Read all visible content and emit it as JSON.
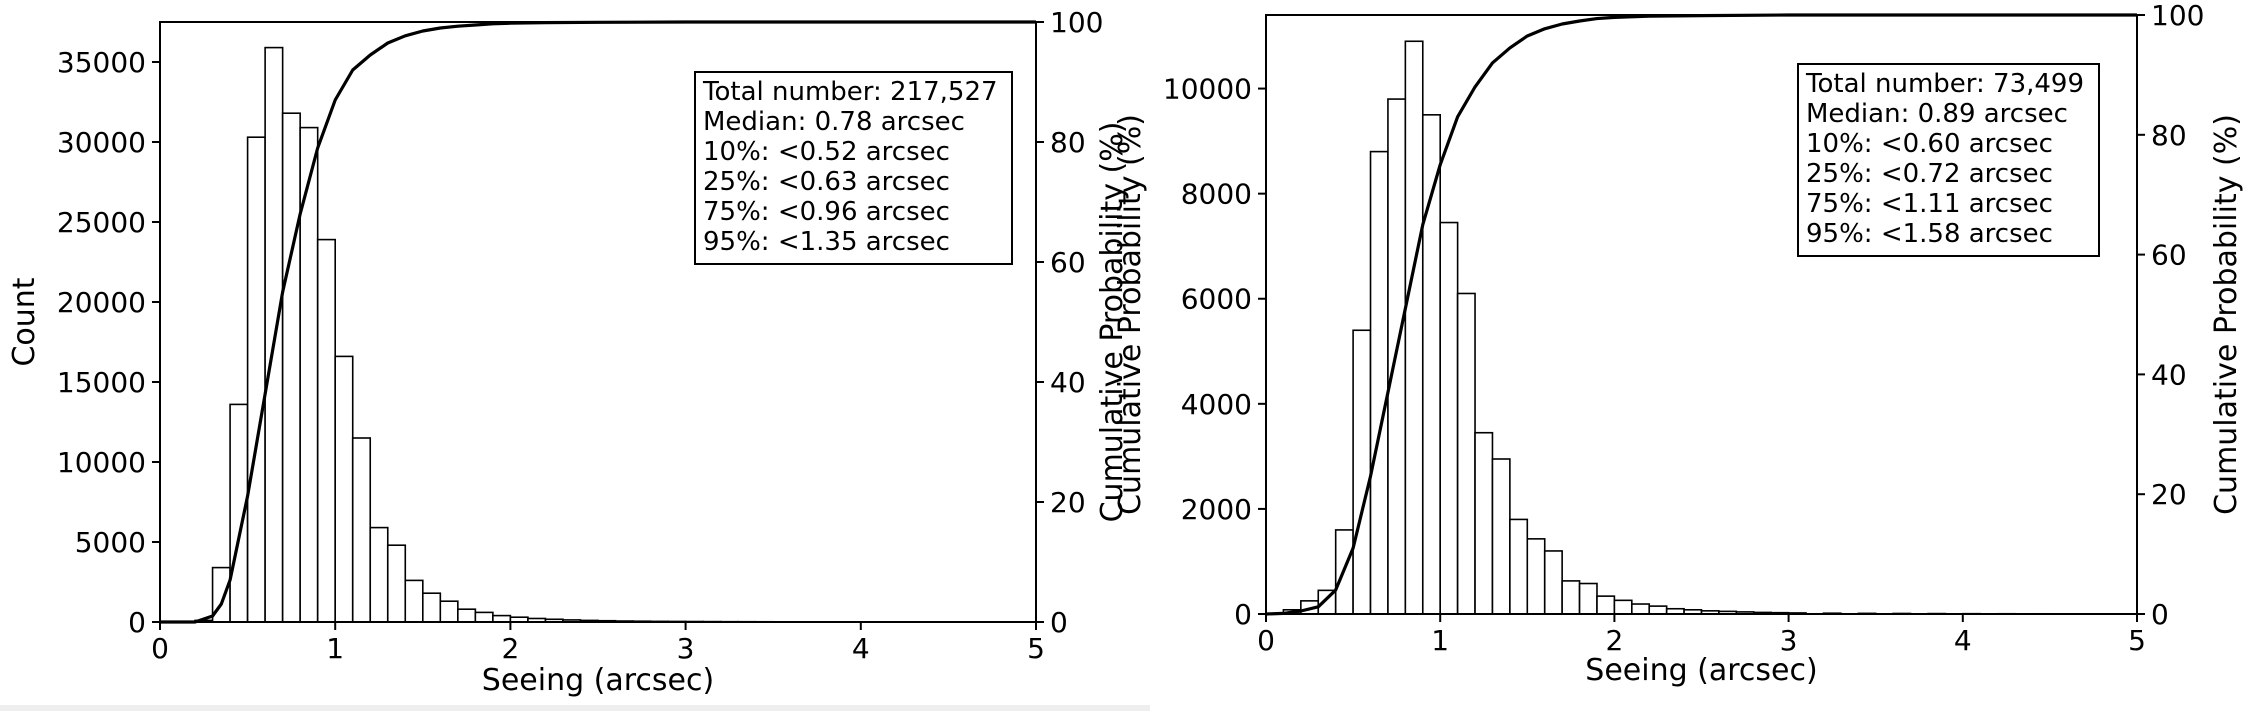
{
  "chart_data": [
    {
      "type": "bar",
      "subtype": "histogram-with-cumulative-line",
      "xlabel": "Seeing (arcsec)",
      "ylabel": "Count",
      "ylabel_right": "Cumulative Probability (%)",
      "xlim": [
        0,
        5
      ],
      "ylim": [
        0,
        37500
      ],
      "ylim_right": [
        0,
        100
      ],
      "xticks": [
        "0",
        "1",
        "2",
        "3",
        "4",
        "5"
      ],
      "yticks": [
        "0",
        "5000",
        "10000",
        "15000",
        "20000",
        "25000",
        "30000",
        "35000"
      ],
      "yticks_right": [
        "0",
        "20",
        "40",
        "60",
        "80",
        "100"
      ],
      "grid": false,
      "legend": "none",
      "bin_width": 0.1,
      "bins_start": [
        0.2,
        0.3,
        0.4,
        0.5,
        0.6,
        0.7,
        0.8,
        0.9,
        1.0,
        1.1,
        1.2,
        1.3,
        1.4,
        1.5,
        1.6,
        1.7,
        1.8,
        1.9,
        2.0,
        2.1,
        2.2,
        2.3,
        2.4,
        2.5,
        2.6,
        2.7,
        2.8,
        2.9,
        3.0,
        3.1,
        3.2,
        3.3,
        3.4,
        3.5,
        3.6,
        3.7,
        3.8,
        3.9,
        4.0,
        4.1
      ],
      "counts": [
        100,
        3400,
        13600,
        30300,
        35900,
        31800,
        30900,
        23900,
        16600,
        11500,
        5900,
        4800,
        2600,
        1800,
        1300,
        800,
        600,
        400,
        300,
        220,
        170,
        130,
        100,
        80,
        60,
        50,
        40,
        35,
        30,
        25,
        20,
        18,
        15,
        12,
        10,
        10,
        8,
        8,
        6,
        5
      ],
      "cumulative": {
        "name": "Cumulative Probability",
        "x": [
          0.0,
          0.2,
          0.3,
          0.35,
          0.4,
          0.5,
          0.6,
          0.7,
          0.8,
          0.9,
          1.0,
          1.1,
          1.2,
          1.3,
          1.4,
          1.5,
          1.6,
          1.7,
          1.8,
          1.9,
          2.0,
          2.2,
          2.5,
          3.0,
          5.0
        ],
        "y": [
          0,
          0,
          1,
          3,
          7,
          21,
          38,
          55,
          68,
          79,
          87,
          92,
          94.5,
          96.5,
          97.7,
          98.5,
          99.0,
          99.3,
          99.5,
          99.7,
          99.8,
          99.9,
          99.95,
          100,
          100
        ]
      },
      "stats": [
        "Total number: 217,527",
        "Median: 0.78 arcsec",
        "10%: <0.52 arcsec",
        "25%: <0.63 arcsec",
        "75%: <0.96 arcsec",
        "95%: <1.35 arcsec"
      ],
      "bar_fill": "#ffffff",
      "bar_edge": "#000000",
      "line_color": "#000000"
    },
    {
      "type": "bar",
      "subtype": "histogram-with-cumulative-line",
      "xlabel": "Seeing (arcsec)",
      "ylabel": "",
      "ylabel_right": "Cumulative Probability (%)",
      "ylabel_left_outer": "Cumulative Probability (%)",
      "xlim": [
        0,
        5
      ],
      "ylim": [
        0,
        11400
      ],
      "ylim_right": [
        0,
        100
      ],
      "xticks": [
        "0",
        "1",
        "2",
        "3",
        "4",
        "5"
      ],
      "yticks": [
        "0",
        "2000",
        "4000",
        "6000",
        "8000",
        "10000"
      ],
      "yticks_right": [
        "0",
        "20",
        "40",
        "60",
        "80",
        "100"
      ],
      "grid": false,
      "legend": "none",
      "bin_width": 0.1,
      "bins_start": [
        0.1,
        0.2,
        0.3,
        0.4,
        0.5,
        0.6,
        0.7,
        0.8,
        0.9,
        1.0,
        1.1,
        1.2,
        1.3,
        1.4,
        1.5,
        1.6,
        1.7,
        1.8,
        1.9,
        2.0,
        2.1,
        2.2,
        2.3,
        2.4,
        2.5,
        2.6,
        2.7,
        2.8,
        2.9,
        3.0,
        3.2,
        3.4,
        3.6,
        3.8,
        4.0,
        4.2,
        4.4,
        4.6,
        4.8
      ],
      "counts": [
        80,
        250,
        450,
        1600,
        5400,
        8800,
        9800,
        10900,
        9500,
        7450,
        6100,
        3450,
        2950,
        1800,
        1430,
        1200,
        630,
        580,
        340,
        260,
        190,
        150,
        100,
        80,
        60,
        50,
        40,
        30,
        25,
        20,
        15,
        12,
        10,
        8,
        6,
        5,
        4,
        3,
        2
      ],
      "cumulative": {
        "name": "Cumulative Probability",
        "x": [
          0.0,
          0.1,
          0.2,
          0.3,
          0.4,
          0.5,
          0.6,
          0.7,
          0.8,
          0.9,
          1.0,
          1.1,
          1.2,
          1.3,
          1.4,
          1.5,
          1.6,
          1.7,
          1.8,
          1.9,
          2.0,
          2.2,
          2.5,
          3.0,
          5.0
        ],
        "y": [
          0,
          0.1,
          0.5,
          1.2,
          4,
          11,
          23,
          37,
          51,
          65,
          75,
          83,
          88,
          92,
          94.5,
          96.5,
          97.7,
          98.5,
          99.0,
          99.4,
          99.6,
          99.8,
          99.9,
          100,
          100
        ]
      },
      "stats": [
        "Total number: 73,499",
        "Median: 0.89 arcsec",
        "10%: <0.60 arcsec",
        "25%: <0.72 arcsec",
        "75%: <1.11 arcsec",
        "95%: <1.58 arcsec"
      ],
      "bar_fill": "#ffffff",
      "bar_edge": "#000000",
      "line_color": "#000000"
    }
  ]
}
